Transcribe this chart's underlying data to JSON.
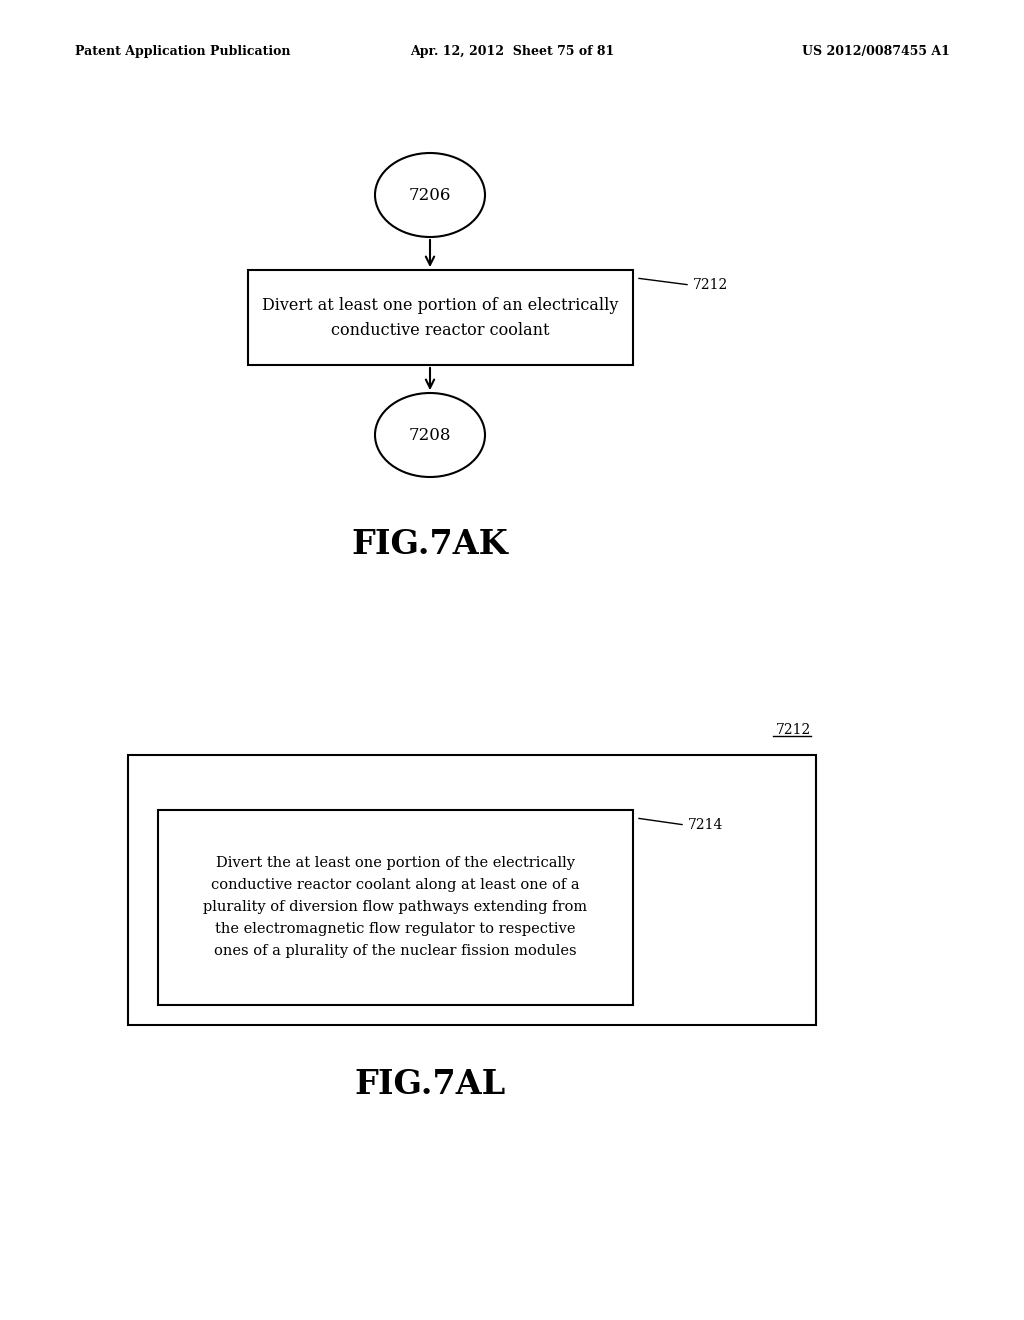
{
  "bg_color": "#ffffff",
  "header_left": "Patent Application Publication",
  "header_mid": "Apr. 12, 2012  Sheet 75 of 81",
  "header_right": "US 2012/0087455 A1",
  "fig7ak_title": "FIG.7AK",
  "circle_top_label": "7206",
  "rect_label": "7212",
  "rect_text_line1": "Divert at least one portion of an electrically",
  "rect_text_line2": "conductive reactor coolant",
  "circle_bot_label": "7208",
  "fig7al_title": "FIG.7AL",
  "outer_rect_label": "7212",
  "inner_rect_label": "7214",
  "inner_rect_text_lines": [
    "Divert the at least one portion of the electrically",
    "conductive reactor coolant along at least one of a",
    "plurality of diversion flow pathways extending from",
    "the electromagnetic flow regulator to respective",
    "ones of a plurality of the nuclear fission modules"
  ]
}
